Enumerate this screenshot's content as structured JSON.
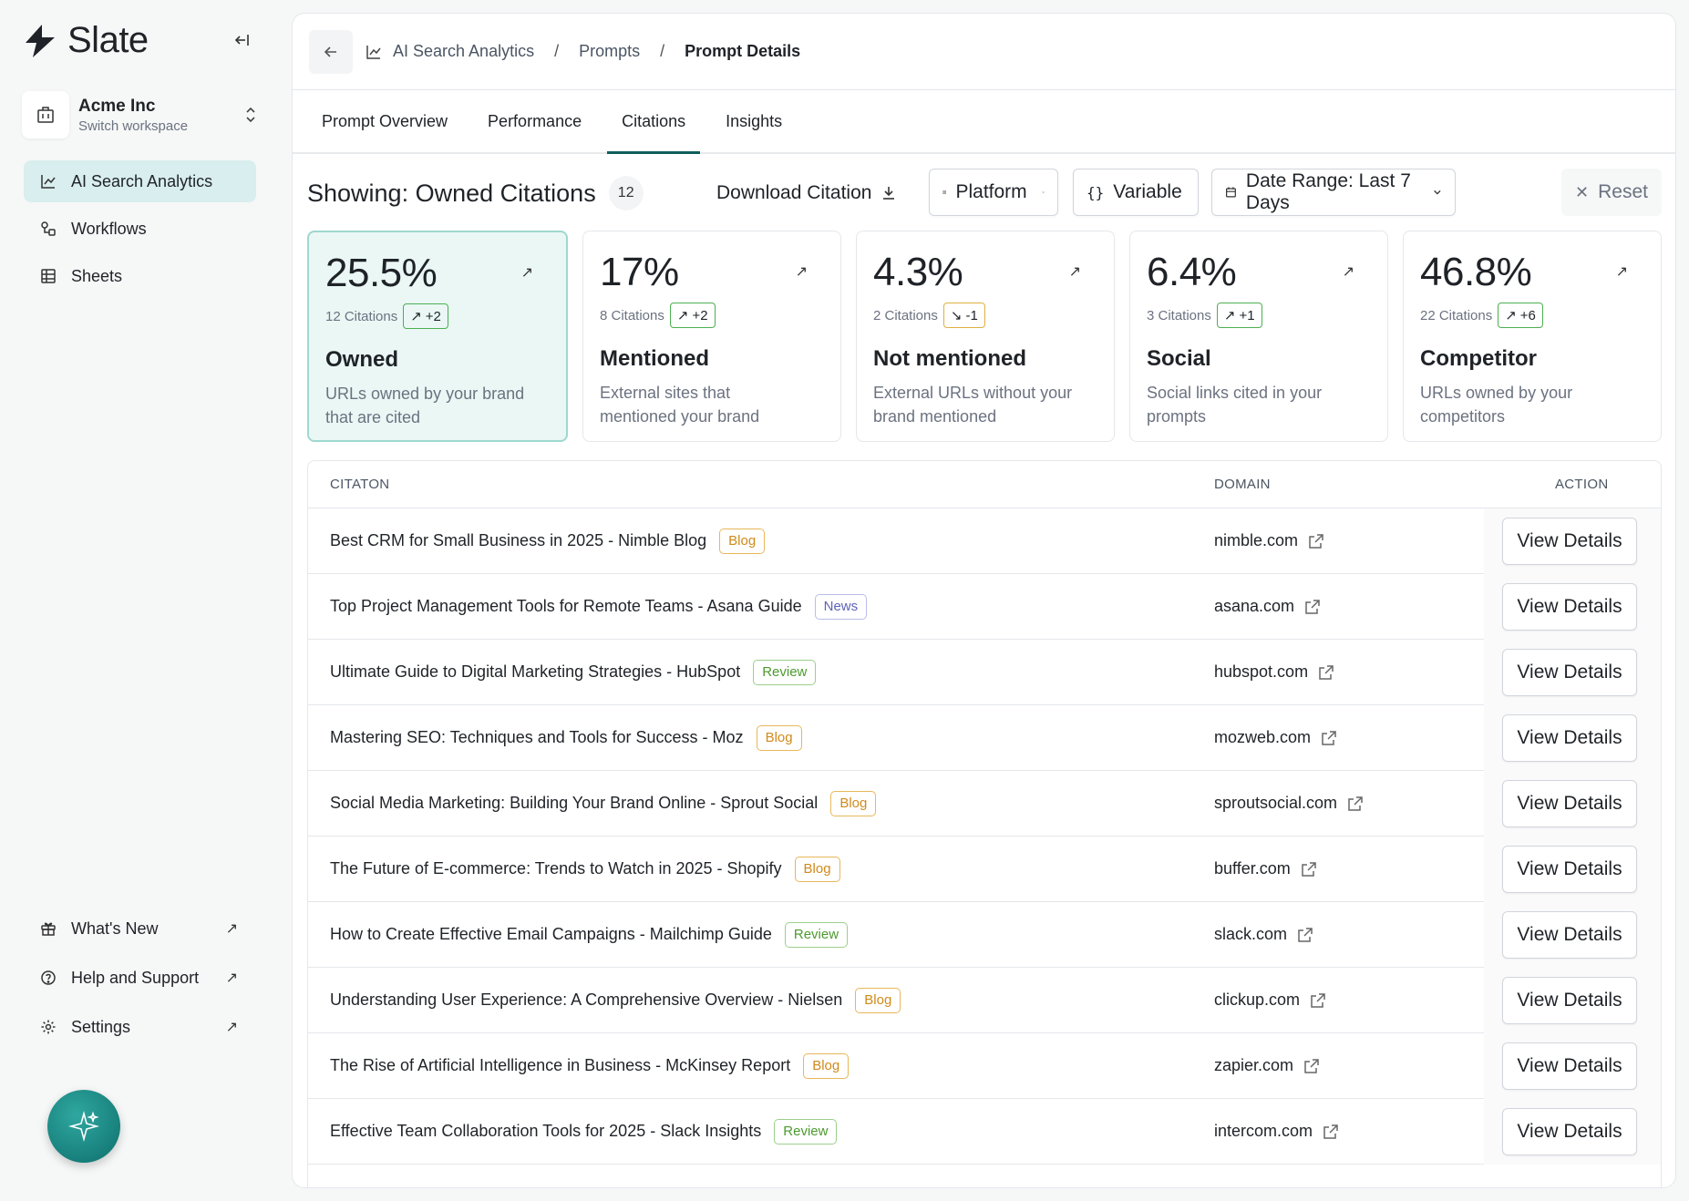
{
  "app": {
    "name": "Slate"
  },
  "workspace": {
    "name": "Acme Inc",
    "subtitle": "Switch workspace"
  },
  "sidebar": {
    "items": [
      {
        "label": "AI Search Analytics",
        "active": true
      },
      {
        "label": "Workflows",
        "active": false
      },
      {
        "label": "Sheets",
        "active": false
      }
    ],
    "bottom": [
      {
        "label": "What's New"
      },
      {
        "label": "Help and Support"
      },
      {
        "label": "Settings"
      }
    ]
  },
  "breadcrumb": {
    "root": "AI Search Analytics",
    "middle": "Prompts",
    "current": "Prompt Details",
    "separator": "/"
  },
  "tabs": [
    {
      "label": "Prompt Overview",
      "active": false
    },
    {
      "label": "Performance",
      "active": false
    },
    {
      "label": "Citations",
      "active": true
    },
    {
      "label": "Insights",
      "active": false
    }
  ],
  "toolbar": {
    "showing_prefix": "Showing:",
    "showing_value": "Owned Citations",
    "count": "12",
    "download_label": "Download Citation",
    "platform_label": "Platform",
    "variable_label": "Variable",
    "date_label": "Date Range: Last 7 Days",
    "reset_label": "Reset"
  },
  "cards": [
    {
      "pct": "25.5%",
      "citations": "12 Citations",
      "trend": "+2",
      "trend_dir": "up",
      "name": "Owned",
      "desc": "URLs owned by your brand that are cited",
      "active": true
    },
    {
      "pct": "17%",
      "citations": "8 Citations",
      "trend": "+2",
      "trend_dir": "up",
      "name": "Mentioned",
      "desc": "External sites that mentioned your brand",
      "active": false
    },
    {
      "pct": "4.3%",
      "citations": "2 Citations",
      "trend": "-1",
      "trend_dir": "down",
      "name": "Not mentioned",
      "desc": "External URLs without your brand mentioned",
      "active": false
    },
    {
      "pct": "6.4%",
      "citations": "3 Citations",
      "trend": "+1",
      "trend_dir": "up",
      "name": "Social",
      "desc": "Social links cited in your prompts",
      "active": false
    },
    {
      "pct": "46.8%",
      "citations": "22 Citations",
      "trend": "+6",
      "trend_dir": "up",
      "name": "Competitor",
      "desc": "URLs owned by your competitors",
      "active": false
    }
  ],
  "table": {
    "headers": {
      "citation": "CITATON",
      "domain": "DOMAIN",
      "action": "ACTION"
    },
    "action_label": "View Details",
    "rows": [
      {
        "title": "Best CRM for Small Business in 2025 - Nimble Blog",
        "tag": "Blog",
        "domain": "nimble.com"
      },
      {
        "title": "Top Project Management Tools for Remote Teams - Asana Guide",
        "tag": "News",
        "domain": "asana.com"
      },
      {
        "title": "Ultimate Guide to Digital Marketing Strategies - HubSpot",
        "tag": "Review",
        "domain": "hubspot.com"
      },
      {
        "title": "Mastering SEO: Techniques and Tools for Success - Moz",
        "tag": "Blog",
        "domain": "mozweb.com"
      },
      {
        "title": "Social Media Marketing: Building Your Brand Online - Sprout Social",
        "tag": "Blog",
        "domain": "sproutsocial.com"
      },
      {
        "title": "The Future of E-commerce: Trends to Watch in 2025 - Shopify",
        "tag": "Blog",
        "domain": "buffer.com"
      },
      {
        "title": "How to Create Effective Email Campaigns - Mailchimp Guide",
        "tag": "Review",
        "domain": "slack.com"
      },
      {
        "title": "Understanding User Experience: A Comprehensive Overview - Nielsen",
        "tag": "Blog",
        "domain": "clickup.com"
      },
      {
        "title": "The Rise of Artificial Intelligence in Business - McKinsey Report",
        "tag": "Blog",
        "domain": "zapier.com"
      },
      {
        "title": "Effective Team Collaboration Tools for 2025 - Slack Insights",
        "tag": "Review",
        "domain": "intercom.com"
      }
    ]
  },
  "colors": {
    "accent": "#0f5e5b",
    "active_nav": "#d9eeee",
    "active_card": "#eaf7f5",
    "fab": "#1a8a85"
  }
}
